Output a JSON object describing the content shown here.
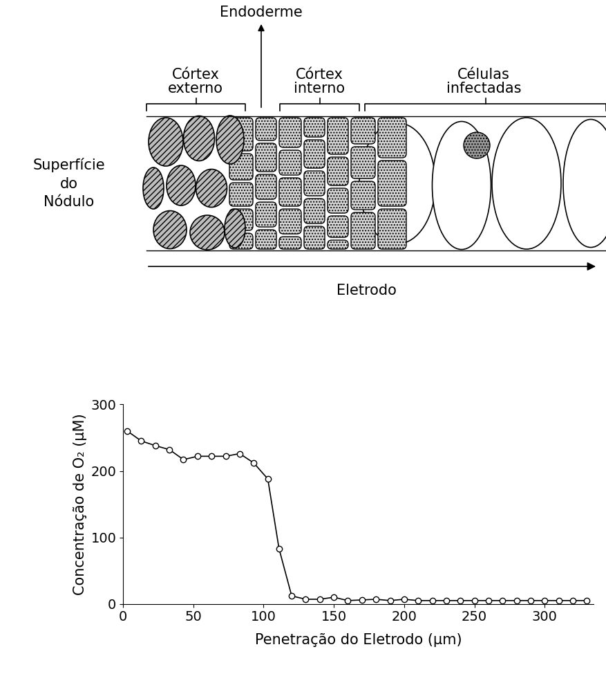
{
  "diagram": {
    "labels": {
      "endoderm": "Endoderme",
      "outer_cortex": "Córtex\nexterno",
      "inner_cortex": "Córtex\ninterno",
      "infected_cells": "Células\ninfectadas",
      "surface": "Superfície\ndo\nNódulo",
      "electrode": "Eletrodo"
    }
  },
  "chart_data": {
    "type": "line",
    "x": [
      3,
      13,
      23,
      33,
      43,
      53,
      63,
      73,
      83,
      93,
      103,
      111,
      120,
      130,
      140,
      150,
      160,
      170,
      180,
      190,
      200,
      210,
      220,
      230,
      240,
      250,
      260,
      270,
      280,
      290,
      300,
      310,
      320,
      330
    ],
    "values": [
      260,
      245,
      238,
      232,
      217,
      222,
      222,
      222,
      226,
      212,
      188,
      83,
      12,
      7,
      7,
      10,
      5,
      6,
      7,
      5,
      7,
      5,
      5,
      5,
      5,
      5,
      5,
      5,
      5,
      5,
      5,
      5,
      5,
      5
    ],
    "xlabel": "Penetração do Eletrodo (µm)",
    "ylabel": "Concentração de O₂ (µM)",
    "xlim": [
      0,
      335
    ],
    "ylim": [
      0,
      300
    ],
    "xticks": [
      0,
      50,
      100,
      150,
      200,
      250,
      300
    ],
    "yticks": [
      0,
      100,
      200,
      300
    ],
    "color": "#000000",
    "marker": "o",
    "grid": false
  }
}
